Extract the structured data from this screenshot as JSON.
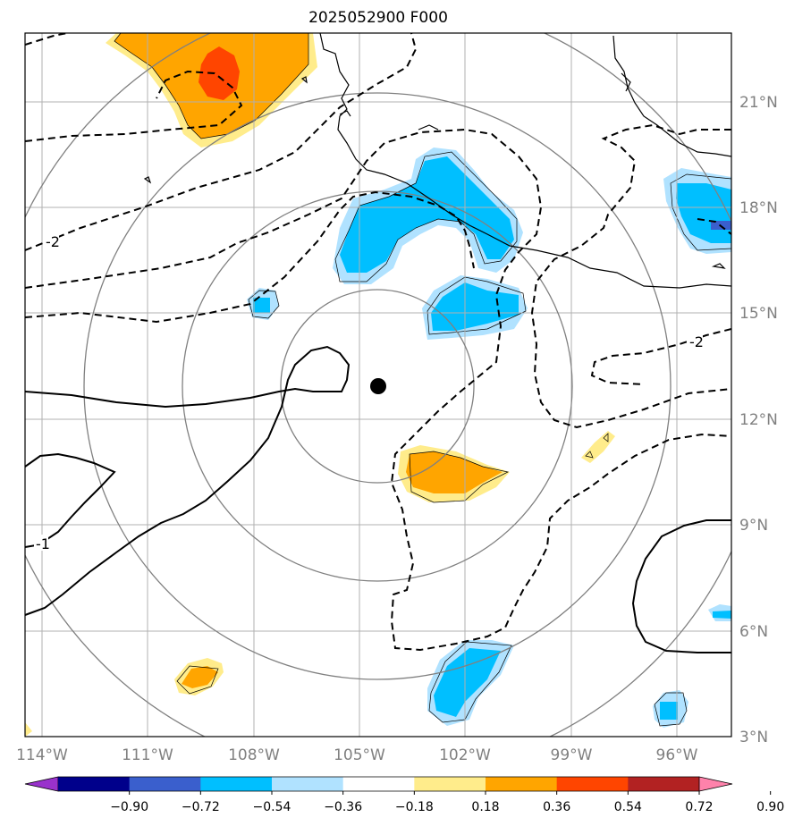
{
  "title": "2025052900 F000",
  "lon_labels": [
    "114°W",
    "111°W",
    "108°W",
    "105°W",
    "102°W",
    "99°W",
    "96°W"
  ],
  "lat_labels": [
    "21°N",
    "18°N",
    "15°N",
    "12°N",
    "9°N",
    "6°N",
    "3°N"
  ],
  "colorbar": {
    "ticks": [
      "−0.90",
      "−0.72",
      "−0.54",
      "−0.36",
      "−0.18",
      "0.18",
      "0.36",
      "0.54",
      "0.72",
      "0.90"
    ],
    "colors": [
      "#9932cc",
      "#00008b",
      "#3a5fcd",
      "#00bfff",
      "#b0e2ff",
      "#ffffff",
      "#ffec8b",
      "#ffa500",
      "#ff4500",
      "#b22222",
      "#ff82ab"
    ]
  },
  "contour_labels": [
    "-2",
    "-2",
    "-1"
  ],
  "storm_center": "storm-center"
}
